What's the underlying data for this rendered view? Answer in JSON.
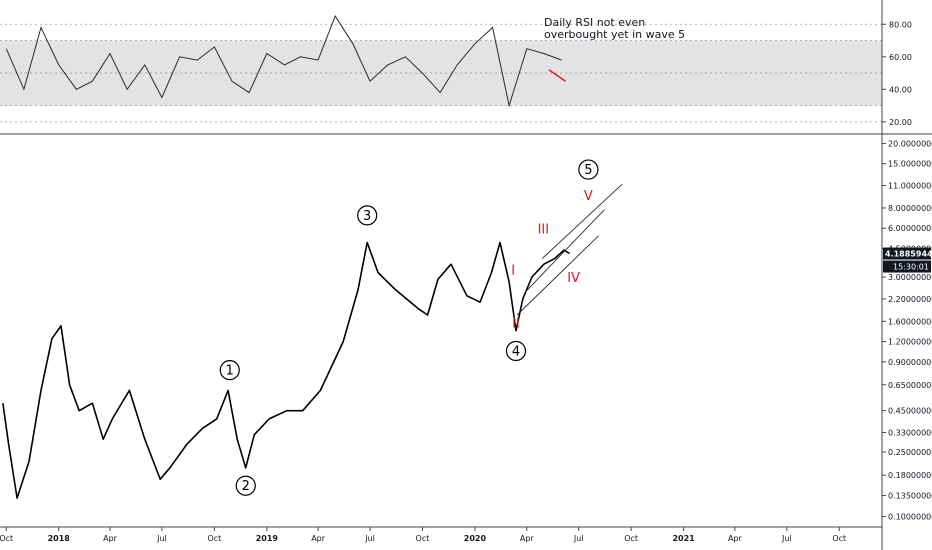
{
  "chart_data": [
    {
      "type": "line",
      "panel": "rsi",
      "annotation": "Daily RSI not even\noverbought yet in wave 5",
      "y_ticks": [
        "80.00",
        "60.00",
        "40.00",
        "20.00"
      ],
      "y_tick_values": [
        80,
        60,
        40,
        20
      ],
      "ylim": [
        15,
        90
      ],
      "band": [
        30,
        70
      ],
      "series": [
        {
          "x": [
            "2017-10-01",
            "2017-11-01",
            "2017-12-01",
            "2018-01-01",
            "2018-02-01",
            "2018-03-01",
            "2018-04-01",
            "2018-05-01",
            "2018-06-01",
            "2018-07-01",
            "2018-08-01",
            "2018-09-01",
            "2018-10-01",
            "2018-11-01",
            "2018-12-01",
            "2019-01-01",
            "2019-02-01",
            "2019-03-01",
            "2019-04-01",
            "2019-05-01",
            "2019-06-01",
            "2019-07-01",
            "2019-08-01",
            "2019-09-01",
            "2019-10-01",
            "2019-11-01",
            "2019-12-01",
            "2020-01-01",
            "2020-02-01",
            "2020-03-01",
            "2020-04-01",
            "2020-05-01",
            "2020-06-01"
          ],
          "values": [
            65,
            40,
            78,
            55,
            40,
            45,
            62,
            40,
            55,
            35,
            60,
            58,
            66,
            45,
            38,
            62,
            55,
            60,
            58,
            85,
            68,
            45,
            55,
            60,
            50,
            38,
            55,
            68,
            78,
            30,
            65,
            62,
            58
          ]
        }
      ],
      "divergence_line": {
        "from": [
          "2020-05-10",
          52
        ],
        "to": [
          "2020-06-08",
          45
        ],
        "color": "#e0191f"
      }
    },
    {
      "type": "line",
      "panel": "price",
      "y_scale": "log",
      "ylim": [
        0.09,
        21
      ],
      "y_ticks": [
        "20.00000000",
        "15.00000000",
        "11.00000000",
        "8.00000000",
        "6.00000000",
        "4.50000000",
        "3.00000000",
        "2.20000000",
        "1.60000000",
        "1.20000000",
        "0.90000000",
        "0.65000000",
        "0.45000000",
        "0.33000000",
        "0.25000000",
        "0.18000000",
        "0.13500000",
        "0.10000000"
      ],
      "y_tick_values": [
        20,
        15,
        11,
        8,
        6,
        4.5,
        3,
        2.2,
        1.6,
        1.2,
        0.9,
        0.65,
        0.45,
        0.33,
        0.25,
        0.18,
        0.135,
        0.1
      ],
      "last_price_label": "4.18859446",
      "last_price_value": 4.18859446,
      "countdown_label": "15:30:01",
      "x_ticks": [
        "Oct",
        "2018",
        "Apr",
        "Jul",
        "Oct",
        "2019",
        "Apr",
        "Jul",
        "Oct",
        "2020",
        "Apr",
        "Jul",
        "Oct",
        "2021",
        "Apr",
        "Jul",
        "Oct"
      ],
      "x_tick_dates": [
        "2017-10-01",
        "2018-01-01",
        "2018-04-01",
        "2018-07-01",
        "2018-10-01",
        "2019-01-01",
        "2019-04-01",
        "2019-07-01",
        "2019-10-01",
        "2020-01-01",
        "2020-04-01",
        "2020-07-01",
        "2020-10-01",
        "2021-01-01",
        "2021-04-01",
        "2021-07-01",
        "2021-10-01"
      ],
      "x_range": [
        "2017-09-20",
        "2021-12-15"
      ],
      "series": [
        {
          "x": [
            "2017-09-25",
            "2017-10-05",
            "2017-10-20",
            "2017-11-10",
            "2017-12-01",
            "2017-12-20",
            "2018-01-05",
            "2018-01-20",
            "2018-02-06",
            "2018-03-01",
            "2018-03-20",
            "2018-04-05",
            "2018-05-05",
            "2018-06-01",
            "2018-06-28",
            "2018-07-15",
            "2018-08-14",
            "2018-09-10",
            "2018-10-05",
            "2018-10-25",
            "2018-11-10",
            "2018-11-25",
            "2018-12-10",
            "2019-01-05",
            "2019-02-05",
            "2019-03-05",
            "2019-04-05",
            "2019-05-15",
            "2019-06-10",
            "2019-06-26",
            "2019-07-15",
            "2019-08-15",
            "2019-09-25",
            "2019-10-10",
            "2019-10-28",
            "2019-11-20",
            "2019-12-18",
            "2020-01-10",
            "2020-01-30",
            "2020-02-14",
            "2020-03-01",
            "2020-03-13",
            "2020-03-25",
            "2020-04-10",
            "2020-05-01",
            "2020-05-20",
            "2020-06-05",
            "2020-06-15"
          ],
          "values": [
            0.5,
            0.28,
            0.13,
            0.22,
            0.6,
            1.25,
            1.5,
            0.65,
            0.45,
            0.5,
            0.3,
            0.4,
            0.6,
            0.3,
            0.17,
            0.2,
            0.28,
            0.35,
            0.4,
            0.6,
            0.3,
            0.2,
            0.32,
            0.4,
            0.45,
            0.45,
            0.6,
            1.2,
            2.5,
            4.9,
            3.2,
            2.5,
            1.9,
            1.75,
            2.9,
            3.6,
            2.3,
            2.1,
            3.2,
            4.9,
            2.8,
            1.4,
            2.2,
            3.0,
            3.6,
            3.9,
            4.4,
            4.19
          ]
        }
      ],
      "wave_labels": [
        {
          "text": "1",
          "x": "2018-10-28",
          "y": 0.8
        },
        {
          "text": "2",
          "x": "2018-11-25",
          "y": 0.155
        },
        {
          "text": "3",
          "x": "2019-06-26",
          "y": 7.2
        },
        {
          "text": "4",
          "x": "2020-03-13",
          "y": 1.05
        },
        {
          "text": "5",
          "x": "2020-07-18",
          "y": 13.8
        }
      ],
      "roman_labels": [
        {
          "text": "I",
          "x": "2020-03-08",
          "y": 3.3
        },
        {
          "text": "II",
          "x": "2020-03-13",
          "y": 1.55
        },
        {
          "text": "III",
          "x": "2020-04-30",
          "y": 5.9
        },
        {
          "text": "IV",
          "x": "2020-06-22",
          "y": 2.95
        },
        {
          "text": "V",
          "x": "2020-07-18",
          "y": 9.5
        }
      ],
      "channel_lines": [
        {
          "from": [
            "2020-03-15",
            1.75
          ],
          "to": [
            "2020-08-05",
            5.4
          ]
        },
        {
          "from": [
            "2020-03-28",
            2.4
          ],
          "to": [
            "2020-08-15",
            7.8
          ]
        },
        {
          "from": [
            "2020-04-28",
            3.9
          ],
          "to": [
            "2020-09-15",
            11.2
          ]
        }
      ]
    }
  ]
}
